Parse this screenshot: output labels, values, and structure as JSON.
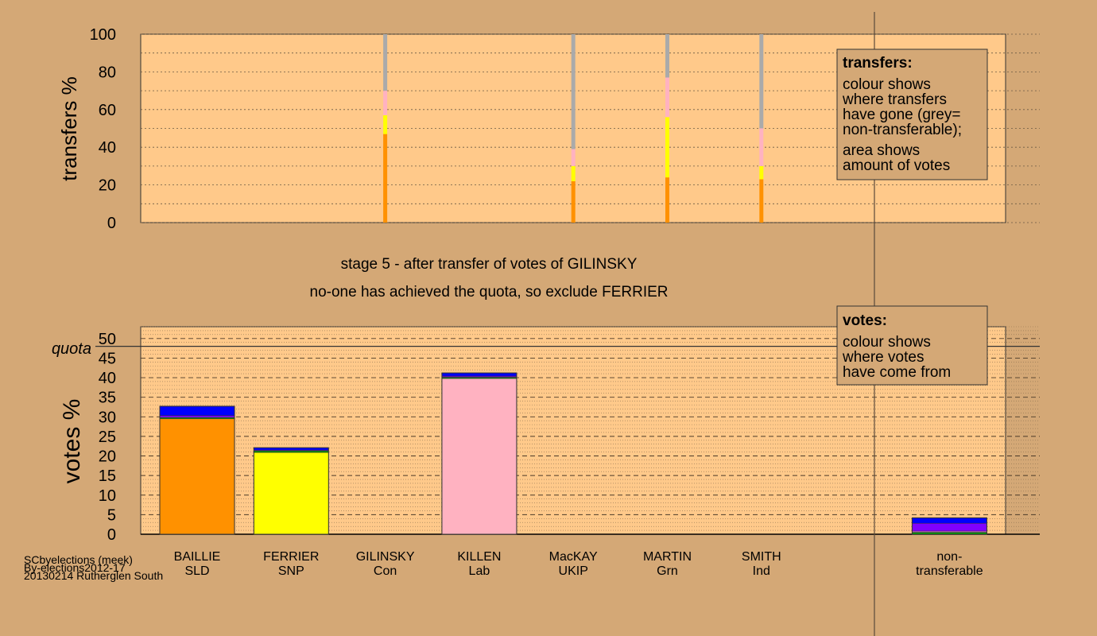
{
  "stage_title": "stage 5 - after transfer of votes of GILINSKY",
  "stage_subtitle": "no-one has achieved the quota, so exclude FERRIER",
  "footer": [
    "SCbyelections (meek)",
    "By-elections2012-17",
    "20130214 Rutherglen South"
  ],
  "colors": {
    "background": "#d4a876",
    "plot_bg": "#ffc98a",
    "SLD": "#ff9100",
    "SNP": "#ffff00",
    "Lab": "#ffb2c1",
    "Con": "#0000ff",
    "UKIP": "#8000ff",
    "Grn": "#00a000",
    "Ind": "#ff80ff",
    "nontransferable": "#aaaaaa"
  },
  "legends": {
    "transfers": {
      "title": "transfers:",
      "lines": [
        "colour shows",
        "where transfers",
        "have gone (grey=",
        "non-transferable);",
        "area shows",
        "amount of votes"
      ]
    },
    "votes": {
      "title": "votes:",
      "lines": [
        "colour shows",
        "where votes",
        "have come from"
      ]
    }
  },
  "chart_data": [
    {
      "type": "bar",
      "stacked": true,
      "ylabel": "transfers %",
      "ylim": [
        0,
        100
      ],
      "yticks": [
        0,
        20,
        40,
        60,
        80,
        100
      ],
      "grid": true,
      "categories": [
        "BAILLIE SLD",
        "FERRIER SNP",
        "GILINSKY Con",
        "KILLEN Lab",
        "MacKAY UKIP",
        "MARTIN Grn",
        "SMITH Ind"
      ],
      "transfer_columns": [
        {
          "category": "GILINSKY Con",
          "segments": [
            {
              "to": "SLD",
              "value": 47
            },
            {
              "to": "SNP",
              "value": 10
            },
            {
              "to": "Lab",
              "value": 13
            },
            {
              "to": "nontransferable",
              "value": 30
            }
          ]
        },
        {
          "category": "MacKAY UKIP",
          "segments": [
            {
              "to": "SLD",
              "value": 22
            },
            {
              "to": "SNP",
              "value": 8
            },
            {
              "to": "Lab",
              "value": 9
            },
            {
              "to": "nontransferable",
              "value": 61
            }
          ]
        },
        {
          "category": "MARTIN Grn",
          "segments": [
            {
              "to": "SLD",
              "value": 24
            },
            {
              "to": "SNP",
              "value": 32
            },
            {
              "to": "Lab",
              "value": 21
            },
            {
              "to": "nontransferable",
              "value": 23
            }
          ]
        },
        {
          "category": "SMITH Ind",
          "segments": [
            {
              "to": "SLD",
              "value": 23
            },
            {
              "to": "SNP",
              "value": 7
            },
            {
              "to": "Lab",
              "value": 20
            },
            {
              "to": "nontransferable",
              "value": 50
            }
          ]
        }
      ]
    },
    {
      "type": "bar",
      "stacked": true,
      "ylabel": "votes %",
      "ylim": [
        0,
        53
      ],
      "yticks": [
        0,
        5,
        10,
        15,
        20,
        25,
        30,
        35,
        40,
        45,
        50
      ],
      "grid": true,
      "quota": 48,
      "quota_label": "quota",
      "categories": [
        {
          "name": "BAILLIE",
          "party": "SLD"
        },
        {
          "name": "FERRIER",
          "party": "SNP"
        },
        {
          "name": "GILINSKY",
          "party": "Con"
        },
        {
          "name": "KILLEN",
          "party": "Lab"
        },
        {
          "name": "MacKAY",
          "party": "UKIP"
        },
        {
          "name": "MARTIN",
          "party": "Grn"
        },
        {
          "name": "SMITH",
          "party": "Ind"
        },
        {
          "name": "non-",
          "party": "transferable"
        }
      ],
      "stacks": [
        [
          {
            "from": "SLD",
            "value": 29.5
          },
          {
            "from": "Grn",
            "value": 0.3
          },
          {
            "from": "UKIP",
            "value": 0.5
          },
          {
            "from": "Con",
            "value": 2.4
          }
        ],
        [
          {
            "from": "SNP",
            "value": 20.9
          },
          {
            "from": "Grn",
            "value": 0.4
          },
          {
            "from": "UKIP",
            "value": 0.2
          },
          {
            "from": "Con",
            "value": 0.6
          }
        ],
        [],
        [
          {
            "from": "Lab",
            "value": 39.8
          },
          {
            "from": "Grn",
            "value": 0.3
          },
          {
            "from": "UKIP",
            "value": 0.3
          },
          {
            "from": "Con",
            "value": 0.8
          }
        ],
        [],
        [],
        [],
        [
          {
            "from": "Grn",
            "value": 0.5
          },
          {
            "from": "Ind",
            "value": 0.3
          },
          {
            "from": "UKIP",
            "value": 2.0
          },
          {
            "from": "Con",
            "value": 1.4
          }
        ]
      ]
    }
  ]
}
